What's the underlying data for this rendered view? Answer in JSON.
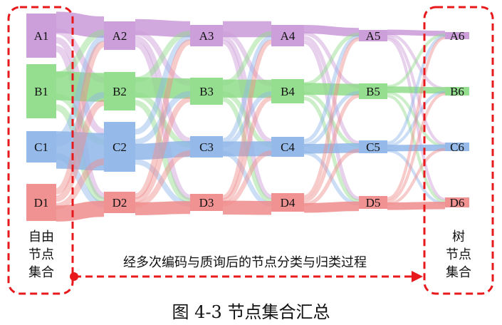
{
  "diagram": {
    "columns": [
      {
        "id": "col1",
        "nodes": [
          "A1",
          "B1",
          "C1",
          "D1"
        ]
      },
      {
        "id": "col2",
        "nodes": [
          "A2",
          "B2",
          "C2",
          "D2"
        ]
      },
      {
        "id": "col3",
        "nodes": [
          "A3",
          "B3",
          "C3",
          "D3"
        ]
      },
      {
        "id": "col4",
        "nodes": [
          "A4",
          "B4",
          "C4",
          "D4"
        ]
      },
      {
        "id": "col5",
        "nodes": [
          "A5",
          "B5",
          "C5",
          "D5"
        ]
      },
      {
        "id": "col6",
        "nodes": [
          "A6",
          "B6",
          "C6",
          "D6"
        ]
      }
    ],
    "group_colors": {
      "A": "#c99ad8",
      "B": "#8fdc8a",
      "C": "#8fb6e8",
      "D": "#f08c8c"
    },
    "left_box_label": [
      "自由",
      "节点",
      "集合"
    ],
    "right_box_label": [
      "树",
      "节点",
      "集合"
    ],
    "arrow_label": "经多次编码与质询后的节点分类与归类过程",
    "box_color": "#e8191c"
  },
  "caption": "图 4-3  节点集合汇总"
}
